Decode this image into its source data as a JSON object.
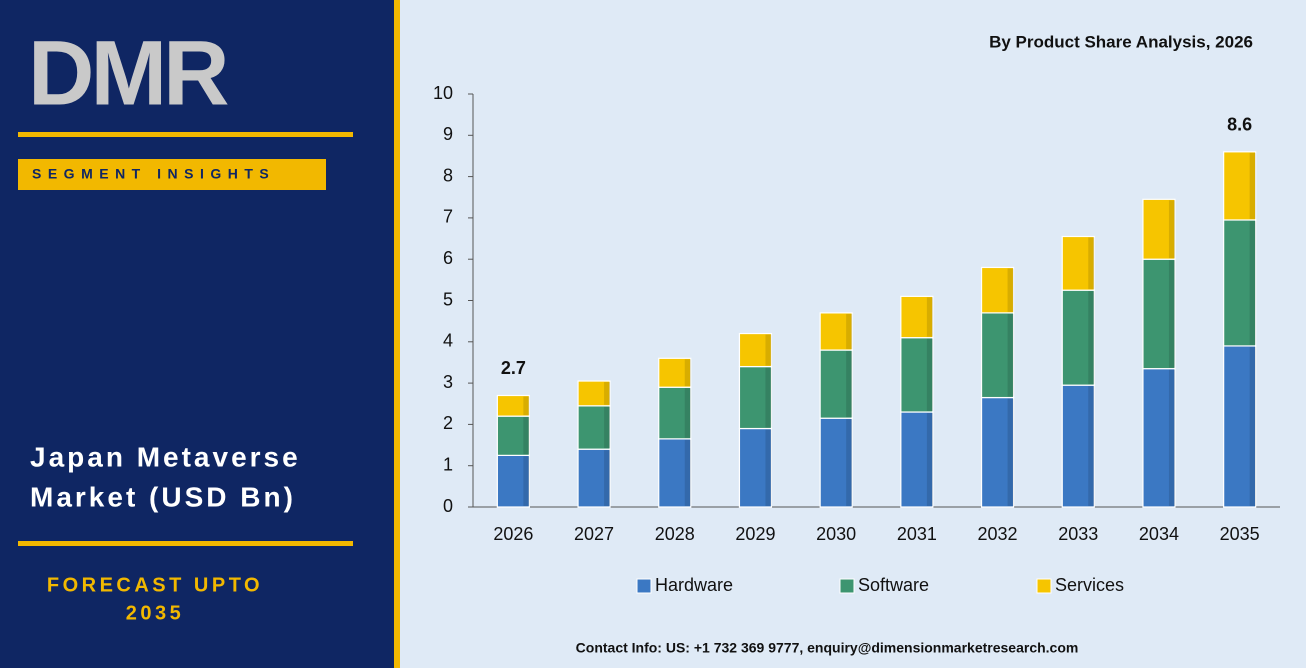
{
  "panel": {
    "logo": "DMR",
    "tag": "SEGMENT INSIGHTS",
    "heading": [
      "Japan Metaverse",
      "Market (USD Bn)"
    ],
    "forecast": [
      "FORECAST UPTO",
      "2035"
    ]
  },
  "chart_data": {
    "type": "stacked_bar",
    "title": "By Product Share Analysis, 2026",
    "categories": [
      "2026",
      "2027",
      "2028",
      "2029",
      "2030",
      "2031",
      "2032",
      "2033",
      "2034",
      "2035"
    ],
    "series": [
      {
        "name": "Hardware",
        "color": "#3b78c3",
        "values": [
          1.25,
          1.4,
          1.65,
          1.9,
          2.15,
          2.3,
          2.65,
          2.95,
          3.35,
          3.9
        ]
      },
      {
        "name": "Software",
        "color": "#3d9570",
        "values": [
          0.95,
          1.05,
          1.25,
          1.5,
          1.65,
          1.8,
          2.05,
          2.3,
          2.65,
          3.05
        ]
      },
      {
        "name": "Services",
        "color": "#f6c500",
        "values": [
          0.5,
          0.6,
          0.7,
          0.8,
          0.9,
          1.0,
          1.1,
          1.3,
          1.45,
          1.65
        ]
      }
    ],
    "totals": [
      2.7,
      null,
      null,
      null,
      null,
      null,
      null,
      null,
      null,
      8.6
    ],
    "ylim": [
      0,
      10
    ],
    "yticks": [
      0,
      1,
      2,
      3,
      4,
      5,
      6,
      7,
      8,
      9,
      10
    ],
    "legend": "bottom"
  },
  "footer": "Contact Info: US: +1 732 369 9777, enquiry@dimensionmarketresearch.com"
}
